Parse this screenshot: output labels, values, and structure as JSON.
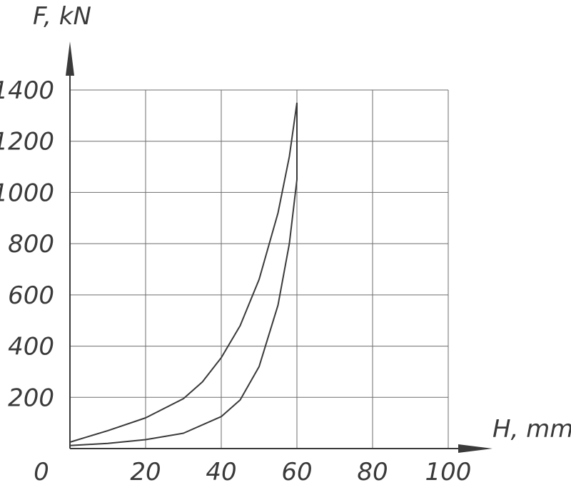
{
  "chart_data": {
    "type": "line",
    "xlabel": "H, mm",
    "ylabel": "F, kN",
    "xlim": [
      0,
      100
    ],
    "ylim": [
      0,
      1400
    ],
    "x_ticks": [
      0,
      20,
      40,
      60,
      80,
      100
    ],
    "y_ticks": [
      200,
      400,
      600,
      800,
      1000,
      1200,
      1400
    ],
    "grid": true,
    "series": [
      {
        "x": [
          0,
          10,
          20,
          30,
          35,
          40,
          45,
          50,
          55,
          58,
          60
        ],
        "y": [
          25,
          70,
          120,
          195,
          260,
          355,
          480,
          660,
          920,
          1140,
          1350
        ]
      },
      {
        "x": [
          0,
          10,
          20,
          30,
          40,
          45,
          50,
          55,
          58,
          60,
          60
        ],
        "y": [
          12,
          20,
          35,
          60,
          125,
          190,
          320,
          560,
          800,
          1050,
          1350
        ]
      }
    ]
  }
}
